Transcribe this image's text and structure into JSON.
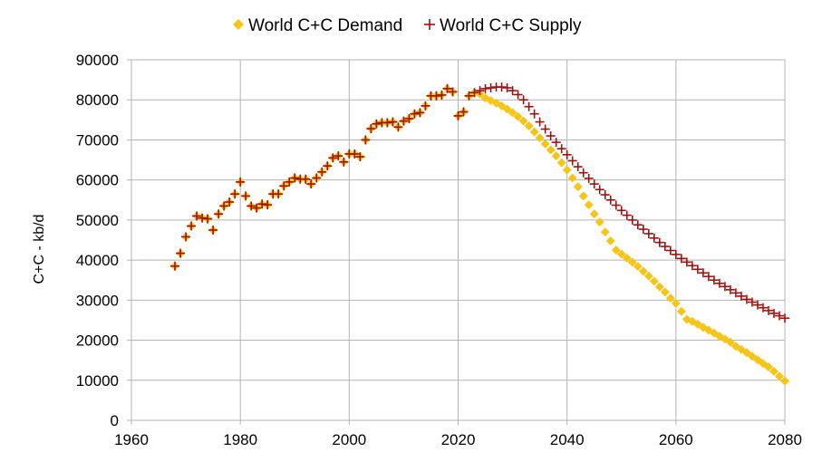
{
  "chart_data": {
    "type": "scatter",
    "title": "",
    "xlabel": "",
    "ylabel": "C+C - kb/d",
    "xlim": [
      1960,
      2080
    ],
    "ylim": [
      0,
      90000
    ],
    "xticks": [
      1960,
      1980,
      2000,
      2020,
      2040,
      2060,
      2080
    ],
    "yticks": [
      0,
      10000,
      20000,
      30000,
      40000,
      50000,
      60000,
      70000,
      80000,
      90000
    ],
    "grid": true,
    "legend_position": "top-center",
    "colors": {
      "demand": "#f5c518",
      "supply": "#a50d0d",
      "grid": "#b3b3b3",
      "axis": "#b3b3b3"
    },
    "series": [
      {
        "name": "World C+C Demand",
        "marker": "diamond",
        "x": [
          1968,
          1969,
          1970,
          1971,
          1972,
          1973,
          1974,
          1975,
          1976,
          1977,
          1978,
          1979,
          1980,
          1981,
          1982,
          1983,
          1984,
          1985,
          1986,
          1987,
          1988,
          1989,
          1990,
          1991,
          1992,
          1993,
          1994,
          1995,
          1996,
          1997,
          1998,
          1999,
          2000,
          2001,
          2002,
          2003,
          2004,
          2005,
          2006,
          2007,
          2008,
          2009,
          2010,
          2011,
          2012,
          2013,
          2014,
          2015,
          2016,
          2017,
          2018,
          2019,
          2020,
          2021,
          2022,
          2023,
          2024,
          2025,
          2026,
          2027,
          2028,
          2029,
          2030,
          2031,
          2032,
          2033,
          2034,
          2035,
          2036,
          2037,
          2038,
          2039,
          2040,
          2041,
          2042,
          2043,
          2044,
          2045,
          2046,
          2047,
          2048,
          2049,
          2050,
          2051,
          2052,
          2053,
          2054,
          2055,
          2056,
          2057,
          2058,
          2059,
          2060,
          2061,
          2062,
          2063,
          2064,
          2065,
          2066,
          2067,
          2068,
          2069,
          2070,
          2071,
          2072,
          2073,
          2074,
          2075,
          2076,
          2077,
          2078,
          2079,
          2080
        ],
        "y": [
          38500,
          41700,
          45800,
          48500,
          51000,
          50500,
          50300,
          47500,
          51500,
          53500,
          54500,
          56500,
          59500,
          56000,
          53500,
          53000,
          54000,
          53800,
          56500,
          56500,
          58500,
          59500,
          60500,
          60200,
          60200,
          59000,
          60500,
          62000,
          63500,
          65500,
          66000,
          64500,
          66500,
          66500,
          65800,
          70000,
          72800,
          74000,
          74300,
          74300,
          74500,
          73200,
          74700,
          75300,
          76500,
          76800,
          78500,
          81000,
          81000,
          81200,
          82800,
          82000,
          76000,
          77000,
          81000,
          81800,
          81500,
          80500,
          79800,
          79200,
          78500,
          77700,
          76800,
          75800,
          74700,
          73500,
          72000,
          70500,
          69000,
          67500,
          66000,
          64300,
          62500,
          60500,
          58300,
          56000,
          53800,
          51500,
          49500,
          47000,
          44800,
          42500,
          41500,
          40500,
          39500,
          38400,
          37200,
          36000,
          34700,
          33300,
          32000,
          30500,
          29200,
          27200,
          25200,
          24700,
          24000,
          23200,
          22500,
          21800,
          21000,
          20300,
          19500,
          18500,
          17700,
          16900,
          16000,
          15100,
          14200,
          13300,
          12200,
          11000,
          9800
        ]
      },
      {
        "name": "World C+C Supply",
        "marker": "plus",
        "x": [
          1968,
          1969,
          1970,
          1971,
          1972,
          1973,
          1974,
          1975,
          1976,
          1977,
          1978,
          1979,
          1980,
          1981,
          1982,
          1983,
          1984,
          1985,
          1986,
          1987,
          1988,
          1989,
          1990,
          1991,
          1992,
          1993,
          1994,
          1995,
          1996,
          1997,
          1998,
          1999,
          2000,
          2001,
          2002,
          2003,
          2004,
          2005,
          2006,
          2007,
          2008,
          2009,
          2010,
          2011,
          2012,
          2013,
          2014,
          2015,
          2016,
          2017,
          2018,
          2019,
          2020,
          2021,
          2022,
          2023,
          2024,
          2025,
          2026,
          2027,
          2028,
          2029,
          2030,
          2031,
          2032,
          2033,
          2034,
          2035,
          2036,
          2037,
          2038,
          2039,
          2040,
          2041,
          2042,
          2043,
          2044,
          2045,
          2046,
          2047,
          2048,
          2049,
          2050,
          2051,
          2052,
          2053,
          2054,
          2055,
          2056,
          2057,
          2058,
          2059,
          2060,
          2061,
          2062,
          2063,
          2064,
          2065,
          2066,
          2067,
          2068,
          2069,
          2070,
          2071,
          2072,
          2073,
          2074,
          2075,
          2076,
          2077,
          2078,
          2079,
          2080
        ],
        "y": [
          38500,
          41700,
          45800,
          48500,
          51000,
          50500,
          50300,
          47500,
          51500,
          53500,
          54500,
          56500,
          59500,
          56000,
          53500,
          53000,
          54000,
          53800,
          56500,
          56500,
          58500,
          59500,
          60500,
          60200,
          60200,
          59000,
          60500,
          62000,
          63500,
          65500,
          66000,
          64500,
          66500,
          66500,
          65800,
          70000,
          72800,
          74000,
          74300,
          74300,
          74500,
          73200,
          74700,
          75300,
          76500,
          76800,
          78500,
          81000,
          81000,
          81200,
          82800,
          82000,
          76000,
          77000,
          81000,
          81800,
          82300,
          82800,
          83000,
          83200,
          83200,
          83000,
          82300,
          81300,
          80000,
          78300,
          76500,
          74500,
          72700,
          71000,
          69400,
          67800,
          66300,
          64800,
          63300,
          61800,
          60400,
          59000,
          57600,
          56300,
          55000,
          53700,
          52400,
          51200,
          50000,
          48800,
          47700,
          46600,
          45500,
          44400,
          43400,
          42400,
          41400,
          40400,
          39500,
          38600,
          37700,
          36800,
          35900,
          35000,
          34200,
          33400,
          32600,
          31800,
          31000,
          30200,
          29500,
          28800,
          28100,
          27400,
          26700,
          26100,
          25500
        ]
      }
    ]
  }
}
